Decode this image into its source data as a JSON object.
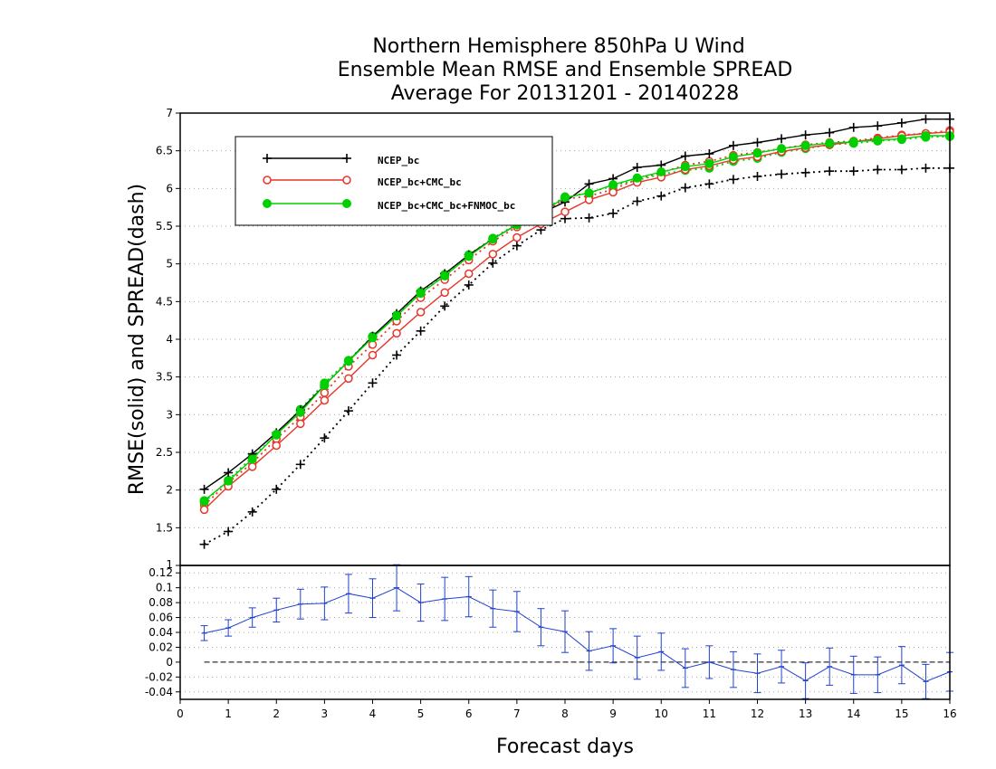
{
  "colors": {
    "ncep_bc": "#000000",
    "ncep_cmc": "#e8352a",
    "ncep_cmc_fnmoc": "#00d000",
    "difference": "#2040d0",
    "grid": "#a8a8a8"
  },
  "chart_data": [
    {
      "type": "line",
      "title": [
        "Northern Hemisphere 850hPa U Wind",
        "Ensemble Mean RMSE and Ensemble SPREAD",
        "Average For 20131201 - 20140228"
      ],
      "ylabel": "RMSE(solid) and SPREAD(dash)",
      "xlim": [
        0,
        16
      ],
      "ylim": [
        1,
        7
      ],
      "yticks": [
        "1.5",
        "2",
        "2.5",
        "3",
        "3.5",
        "4",
        "4.5",
        "5",
        "5.5",
        "6",
        "6.5",
        "7"
      ],
      "grid": true,
      "legend_position": "top-left",
      "x": [
        0.5,
        1,
        1.5,
        2,
        2.5,
        3,
        3.5,
        4,
        4.5,
        5,
        5.5,
        6,
        6.5,
        7,
        7.5,
        8,
        8.5,
        9,
        9.5,
        10,
        10.5,
        11,
        11.5,
        12,
        12.5,
        13,
        13.5,
        14,
        14.5,
        15,
        15.5,
        16
      ],
      "series": [
        {
          "name": "NCEP_bc",
          "line": "solid",
          "marker": "plus",
          "color_key": "ncep_bc",
          "values": [
            2.01,
            2.23,
            2.48,
            2.76,
            3.06,
            3.39,
            3.71,
            4.04,
            4.34,
            4.64,
            4.87,
            5.12,
            5.33,
            5.52,
            5.67,
            5.82,
            6.06,
            6.13,
            6.28,
            6.31,
            6.43,
            6.46,
            6.57,
            6.61,
            6.66,
            6.71,
            6.74,
            6.81,
            6.83,
            6.87,
            6.92,
            6.92
          ]
        },
        {
          "name": "NCEP_bc+CMC_bc",
          "line": "solid",
          "marker": "circle-open",
          "color_key": "ncep_cmc",
          "values": [
            1.74,
            2.05,
            2.31,
            2.59,
            2.88,
            3.19,
            3.48,
            3.79,
            4.08,
            4.36,
            4.62,
            4.87,
            5.13,
            5.35,
            5.53,
            5.69,
            5.85,
            5.95,
            6.08,
            6.15,
            6.25,
            6.3,
            6.38,
            6.42,
            6.49,
            6.54,
            6.58,
            6.62,
            6.66,
            6.7,
            6.73,
            6.75
          ]
        },
        {
          "name": "NCEP_bc+CMC_bc+FNMOC_bc",
          "line": "solid",
          "marker": "circle-filled",
          "color_key": "ncep_cmc_fnmoc",
          "values": [
            1.86,
            2.12,
            2.41,
            2.74,
            3.03,
            3.39,
            3.71,
            4.02,
            4.31,
            4.61,
            4.84,
            5.1,
            5.33,
            5.52,
            5.68,
            5.88,
            5.94,
            6.05,
            6.14,
            6.22,
            6.29,
            6.33,
            6.42,
            6.47,
            6.53,
            6.57,
            6.6,
            6.62,
            6.64,
            6.66,
            6.7,
            6.7
          ]
        },
        {
          "name": "NCEP_bc",
          "line": "dotted",
          "marker": "plus",
          "color_key": "ncep_bc",
          "values": [
            1.28,
            1.45,
            1.71,
            2.01,
            2.34,
            2.69,
            3.05,
            3.42,
            3.79,
            4.11,
            4.44,
            4.72,
            5.01,
            5.24,
            5.45,
            5.6,
            5.61,
            5.67,
            5.83,
            5.9,
            6.01,
            6.06,
            6.12,
            6.16,
            6.19,
            6.21,
            6.23,
            6.23,
            6.25,
            6.25,
            6.27,
            6.27
          ]
        },
        {
          "name": "NCEP_bc+CMC_bc",
          "line": "dotted",
          "marker": "circle-open",
          "color_key": "ncep_cmc",
          "values": [
            1.8,
            2.1,
            2.36,
            2.68,
            2.97,
            3.29,
            3.64,
            3.93,
            4.24,
            4.55,
            4.79,
            5.05,
            5.3,
            5.49,
            5.66,
            5.86,
            5.9,
            5.99,
            6.12,
            6.21,
            6.31,
            6.36,
            6.44,
            6.48,
            6.53,
            6.58,
            6.61,
            6.63,
            6.67,
            6.71,
            6.73,
            6.77
          ]
        },
        {
          "name": "NCEP_bc+CMC_bc+FNMOC_bc",
          "line": "dotted",
          "marker": "circle-filled",
          "color_key": "ncep_cmc_fnmoc",
          "values": [
            1.84,
            2.13,
            2.44,
            2.73,
            3.07,
            3.42,
            3.72,
            4.04,
            4.32,
            4.63,
            4.86,
            5.12,
            5.34,
            5.53,
            5.69,
            5.89,
            5.94,
            6.04,
            6.11,
            6.19,
            6.24,
            6.27,
            6.36,
            6.4,
            6.48,
            6.53,
            6.58,
            6.6,
            6.63,
            6.65,
            6.68,
            6.69
          ]
        }
      ]
    },
    {
      "type": "line",
      "xlabel": "Forecast days",
      "xlim": [
        0,
        16
      ],
      "ylim": [
        -0.05,
        0.13
      ],
      "xticks": [
        "0",
        "1",
        "2",
        "3",
        "4",
        "5",
        "6",
        "7",
        "8",
        "9",
        "10",
        "11",
        "12",
        "13",
        "14",
        "15",
        "16"
      ],
      "yticks": [
        "-0.04",
        "-0.02",
        "0",
        "0.02",
        "0.04",
        "0.06",
        "0.08",
        "0.1",
        "0.12"
      ],
      "grid": true,
      "reference_line": 0,
      "x": [
        0.5,
        1,
        1.5,
        2,
        2.5,
        3,
        3.5,
        4,
        4.5,
        5,
        5.5,
        6,
        6.5,
        7,
        7.5,
        8,
        8.5,
        9,
        9.5,
        10,
        10.5,
        11,
        11.5,
        12,
        12.5,
        13,
        13.5,
        14,
        14.5,
        15,
        15.5,
        16
      ],
      "series": [
        {
          "marker": "error-bar",
          "color_key": "difference",
          "values": [
            0.039,
            0.046,
            0.06,
            0.07,
            0.078,
            0.079,
            0.092,
            0.086,
            0.1,
            0.08,
            0.085,
            0.088,
            0.072,
            0.068,
            0.047,
            0.041,
            0.015,
            0.022,
            0.006,
            0.014,
            -0.008,
            0.0,
            -0.01,
            -0.015,
            -0.006,
            -0.025,
            -0.006,
            -0.017,
            -0.017,
            -0.004,
            -0.026,
            -0.013
          ],
          "error": [
            0.01,
            0.011,
            0.013,
            0.016,
            0.02,
            0.022,
            0.026,
            0.026,
            0.031,
            0.025,
            0.029,
            0.027,
            0.025,
            0.027,
            0.025,
            0.028,
            0.026,
            0.023,
            0.029,
            0.025,
            0.026,
            0.022,
            0.024,
            0.026,
            0.022,
            0.024,
            0.025,
            0.025,
            0.024,
            0.025,
            0.023,
            0.026
          ]
        }
      ]
    }
  ]
}
